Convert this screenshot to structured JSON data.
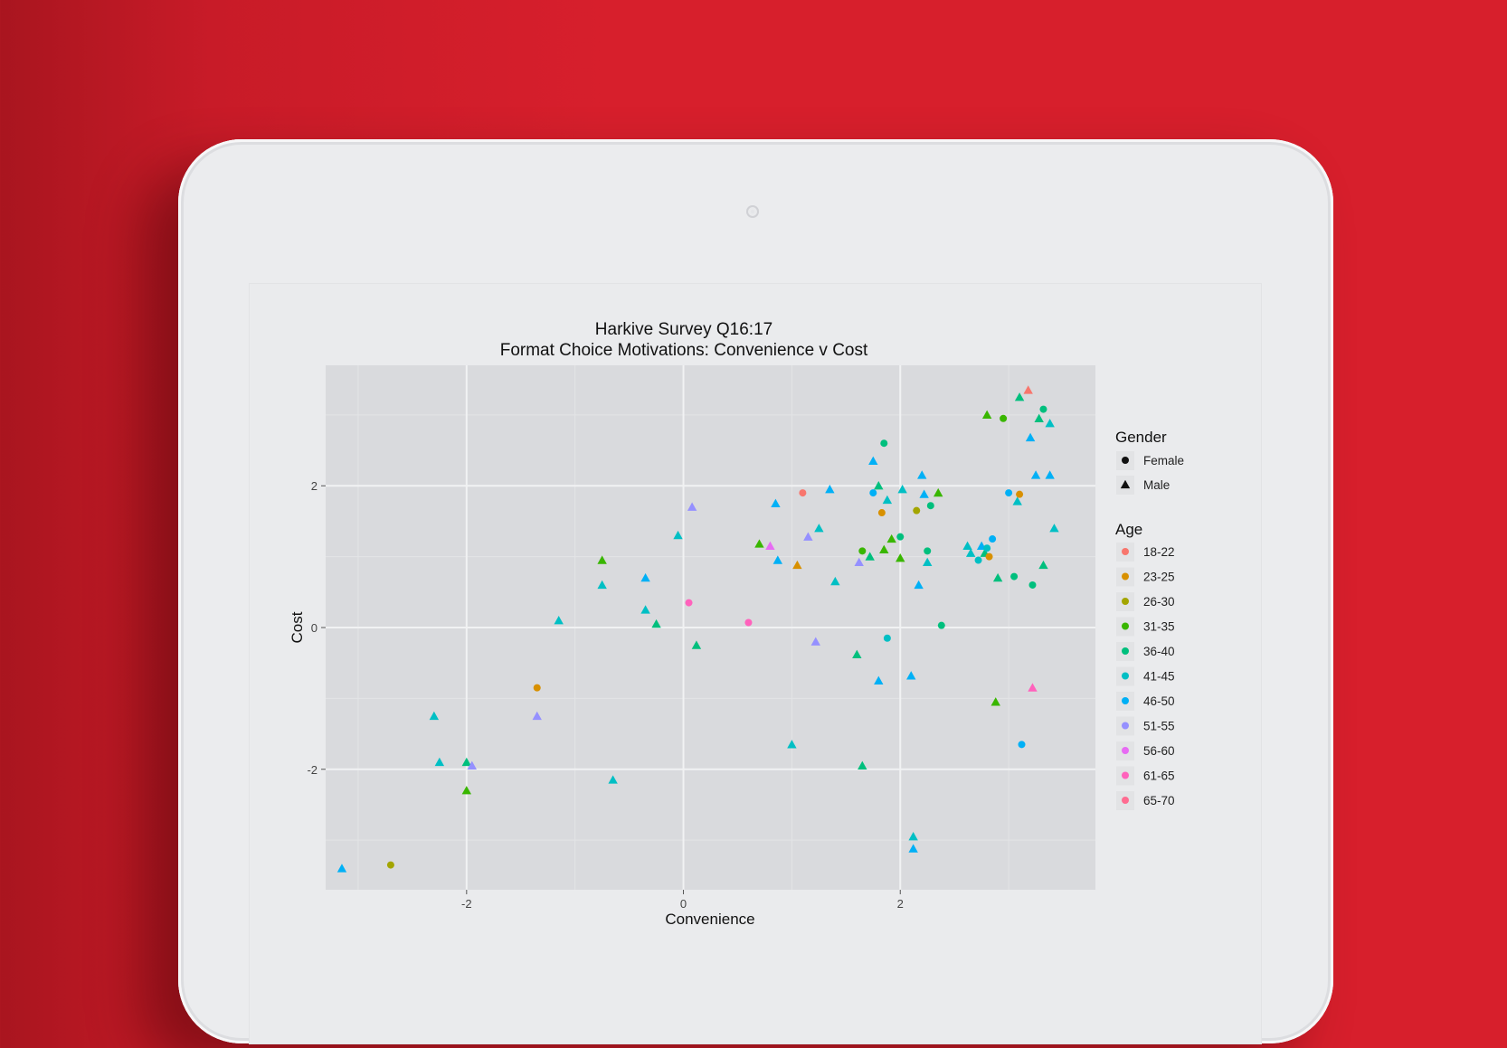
{
  "chart_data": {
    "type": "scatter",
    "title": "Harkive Survey Q16:17",
    "subtitle": "Format Choice Motivations: Convenience v Cost",
    "xlabel": "Convenience",
    "ylabel": "Cost",
    "xlim": [
      -3.3,
      3.8
    ],
    "ylim": [
      -3.7,
      3.7
    ],
    "xticks": [
      -2,
      0,
      2
    ],
    "yticks": [
      -2,
      0,
      2
    ],
    "grid": true,
    "legend_position": "right",
    "legends": {
      "shape": {
        "title": "Gender",
        "entries": [
          {
            "label": "Female",
            "shape": "circle"
          },
          {
            "label": "Male",
            "shape": "triangle"
          }
        ]
      },
      "color": {
        "title": "Age",
        "entries": [
          {
            "label": "18-22",
            "color": "#F8766D"
          },
          {
            "label": "23-25",
            "color": "#D89000"
          },
          {
            "label": "26-30",
            "color": "#A3A500"
          },
          {
            "label": "31-35",
            "color": "#39B600"
          },
          {
            "label": "36-40",
            "color": "#00BF7D"
          },
          {
            "label": "41-45",
            "color": "#00BFC4"
          },
          {
            "label": "46-50",
            "color": "#00B0F6"
          },
          {
            "label": "51-55",
            "color": "#9590FF"
          },
          {
            "label": "56-60",
            "color": "#E76BF3"
          },
          {
            "label": "61-65",
            "color": "#FF62BC"
          },
          {
            "label": "65-70",
            "color": "#FF6C91"
          }
        ]
      }
    },
    "points": [
      {
        "x": -3.15,
        "y": -3.4,
        "gender": "Male",
        "age": "46-50"
      },
      {
        "x": -2.7,
        "y": -3.35,
        "gender": "Female",
        "age": "26-30"
      },
      {
        "x": -2.3,
        "y": -1.25,
        "gender": "Male",
        "age": "41-45"
      },
      {
        "x": -2.25,
        "y": -1.9,
        "gender": "Male",
        "age": "41-45"
      },
      {
        "x": -2.0,
        "y": -1.9,
        "gender": "Male",
        "age": "36-40"
      },
      {
        "x": -1.95,
        "y": -1.95,
        "gender": "Male",
        "age": "51-55"
      },
      {
        "x": -2.0,
        "y": -2.3,
        "gender": "Male",
        "age": "31-35"
      },
      {
        "x": -1.35,
        "y": -0.85,
        "gender": "Female",
        "age": "23-25"
      },
      {
        "x": -1.35,
        "y": -1.25,
        "gender": "Male",
        "age": "51-55"
      },
      {
        "x": -1.15,
        "y": 0.1,
        "gender": "Male",
        "age": "41-45"
      },
      {
        "x": -0.75,
        "y": 0.95,
        "gender": "Male",
        "age": "31-35"
      },
      {
        "x": -0.75,
        "y": 0.6,
        "gender": "Male",
        "age": "41-45"
      },
      {
        "x": -0.65,
        "y": -2.15,
        "gender": "Male",
        "age": "41-45"
      },
      {
        "x": -0.35,
        "y": 0.7,
        "gender": "Male",
        "age": "46-50"
      },
      {
        "x": -0.35,
        "y": 0.25,
        "gender": "Male",
        "age": "41-45"
      },
      {
        "x": -0.25,
        "y": 0.05,
        "gender": "Male",
        "age": "36-40"
      },
      {
        "x": -0.05,
        "y": 1.3,
        "gender": "Male",
        "age": "41-45"
      },
      {
        "x": 0.05,
        "y": 0.35,
        "gender": "Female",
        "age": "61-65"
      },
      {
        "x": 0.08,
        "y": 1.7,
        "gender": "Male",
        "age": "51-55"
      },
      {
        "x": 0.12,
        "y": -0.25,
        "gender": "Male",
        "age": "36-40"
      },
      {
        "x": 0.6,
        "y": 0.07,
        "gender": "Female",
        "age": "61-65"
      },
      {
        "x": 0.7,
        "y": 1.18,
        "gender": "Male",
        "age": "31-35"
      },
      {
        "x": 0.8,
        "y": 1.15,
        "gender": "Male",
        "age": "56-60"
      },
      {
        "x": 0.85,
        "y": 1.75,
        "gender": "Male",
        "age": "46-50"
      },
      {
        "x": 0.87,
        "y": 0.95,
        "gender": "Male",
        "age": "46-50"
      },
      {
        "x": 1.0,
        "y": -1.65,
        "gender": "Male",
        "age": "41-45"
      },
      {
        "x": 1.05,
        "y": 0.88,
        "gender": "Male",
        "age": "23-25"
      },
      {
        "x": 1.1,
        "y": 1.9,
        "gender": "Female",
        "age": "18-22"
      },
      {
        "x": 1.15,
        "y": 1.28,
        "gender": "Male",
        "age": "51-55"
      },
      {
        "x": 1.22,
        "y": -0.2,
        "gender": "Male",
        "age": "51-55"
      },
      {
        "x": 1.25,
        "y": 1.4,
        "gender": "Male",
        "age": "41-45"
      },
      {
        "x": 1.35,
        "y": 1.95,
        "gender": "Male",
        "age": "46-50"
      },
      {
        "x": 1.4,
        "y": 0.65,
        "gender": "Male",
        "age": "41-45"
      },
      {
        "x": 1.6,
        "y": -0.38,
        "gender": "Male",
        "age": "36-40"
      },
      {
        "x": 1.62,
        "y": 0.92,
        "gender": "Male",
        "age": "51-55"
      },
      {
        "x": 1.65,
        "y": -1.95,
        "gender": "Male",
        "age": "36-40"
      },
      {
        "x": 1.65,
        "y": 1.08,
        "gender": "Female",
        "age": "31-35"
      },
      {
        "x": 1.72,
        "y": 1.0,
        "gender": "Male",
        "age": "36-40"
      },
      {
        "x": 1.75,
        "y": 1.9,
        "gender": "Female",
        "age": "46-50"
      },
      {
        "x": 1.75,
        "y": 2.35,
        "gender": "Male",
        "age": "46-50"
      },
      {
        "x": 1.8,
        "y": 2.0,
        "gender": "Male",
        "age": "36-40"
      },
      {
        "x": 1.8,
        "y": -0.75,
        "gender": "Male",
        "age": "46-50"
      },
      {
        "x": 1.83,
        "y": 1.62,
        "gender": "Female",
        "age": "23-25"
      },
      {
        "x": 1.85,
        "y": 2.6,
        "gender": "Female",
        "age": "36-40"
      },
      {
        "x": 1.85,
        "y": 1.1,
        "gender": "Male",
        "age": "31-35"
      },
      {
        "x": 1.88,
        "y": 1.8,
        "gender": "Male",
        "age": "41-45"
      },
      {
        "x": 1.88,
        "y": -0.15,
        "gender": "Female",
        "age": "41-45"
      },
      {
        "x": 1.92,
        "y": 1.25,
        "gender": "Male",
        "age": "31-35"
      },
      {
        "x": 2.0,
        "y": 1.28,
        "gender": "Female",
        "age": "36-40"
      },
      {
        "x": 2.0,
        "y": 0.98,
        "gender": "Male",
        "age": "31-35"
      },
      {
        "x": 2.02,
        "y": 1.95,
        "gender": "Male",
        "age": "41-45"
      },
      {
        "x": 2.1,
        "y": -0.68,
        "gender": "Male",
        "age": "46-50"
      },
      {
        "x": 2.12,
        "y": -2.95,
        "gender": "Male",
        "age": "41-45"
      },
      {
        "x": 2.12,
        "y": -3.12,
        "gender": "Male",
        "age": "46-50"
      },
      {
        "x": 2.15,
        "y": 1.65,
        "gender": "Female",
        "age": "26-30"
      },
      {
        "x": 2.17,
        "y": 0.6,
        "gender": "Male",
        "age": "46-50"
      },
      {
        "x": 2.2,
        "y": 2.15,
        "gender": "Male",
        "age": "46-50"
      },
      {
        "x": 2.22,
        "y": 1.88,
        "gender": "Male",
        "age": "46-50"
      },
      {
        "x": 2.25,
        "y": 1.08,
        "gender": "Female",
        "age": "36-40"
      },
      {
        "x": 2.25,
        "y": 0.92,
        "gender": "Male",
        "age": "41-45"
      },
      {
        "x": 2.28,
        "y": 1.72,
        "gender": "Female",
        "age": "36-40"
      },
      {
        "x": 2.35,
        "y": 1.9,
        "gender": "Male",
        "age": "31-35"
      },
      {
        "x": 2.38,
        "y": 0.03,
        "gender": "Female",
        "age": "36-40"
      },
      {
        "x": 2.62,
        "y": 1.15,
        "gender": "Male",
        "age": "41-45"
      },
      {
        "x": 2.65,
        "y": 1.05,
        "gender": "Male",
        "age": "41-45"
      },
      {
        "x": 2.72,
        "y": 0.95,
        "gender": "Female",
        "age": "41-45"
      },
      {
        "x": 2.75,
        "y": 1.15,
        "gender": "Male",
        "age": "46-50"
      },
      {
        "x": 2.78,
        "y": 1.05,
        "gender": "Male",
        "age": "36-40"
      },
      {
        "x": 2.8,
        "y": 1.12,
        "gender": "Female",
        "age": "41-45"
      },
      {
        "x": 2.8,
        "y": 3.0,
        "gender": "Male",
        "age": "31-35"
      },
      {
        "x": 2.82,
        "y": 1.0,
        "gender": "Female",
        "age": "23-25"
      },
      {
        "x": 2.85,
        "y": 1.25,
        "gender": "Female",
        "age": "46-50"
      },
      {
        "x": 2.88,
        "y": -1.05,
        "gender": "Male",
        "age": "31-35"
      },
      {
        "x": 2.9,
        "y": 0.7,
        "gender": "Male",
        "age": "36-40"
      },
      {
        "x": 2.95,
        "y": 2.95,
        "gender": "Female",
        "age": "31-35"
      },
      {
        "x": 3.0,
        "y": 1.9,
        "gender": "Female",
        "age": "46-50"
      },
      {
        "x": 3.05,
        "y": 0.72,
        "gender": "Female",
        "age": "36-40"
      },
      {
        "x": 3.08,
        "y": 1.78,
        "gender": "Male",
        "age": "41-45"
      },
      {
        "x": 3.1,
        "y": 3.25,
        "gender": "Male",
        "age": "36-40"
      },
      {
        "x": 3.1,
        "y": 1.88,
        "gender": "Female",
        "age": "23-25"
      },
      {
        "x": 3.12,
        "y": -1.65,
        "gender": "Female",
        "age": "46-50"
      },
      {
        "x": 3.18,
        "y": 3.35,
        "gender": "Male",
        "age": "18-22"
      },
      {
        "x": 3.2,
        "y": 2.68,
        "gender": "Male",
        "age": "46-50"
      },
      {
        "x": 3.22,
        "y": -0.85,
        "gender": "Male",
        "age": "61-65"
      },
      {
        "x": 3.22,
        "y": 0.6,
        "gender": "Female",
        "age": "36-40"
      },
      {
        "x": 3.25,
        "y": 2.15,
        "gender": "Male",
        "age": "46-50"
      },
      {
        "x": 3.28,
        "y": 2.95,
        "gender": "Male",
        "age": "36-40"
      },
      {
        "x": 3.32,
        "y": 3.08,
        "gender": "Female",
        "age": "36-40"
      },
      {
        "x": 3.32,
        "y": 0.88,
        "gender": "Male",
        "age": "36-40"
      },
      {
        "x": 3.38,
        "y": 2.88,
        "gender": "Male",
        "age": "41-45"
      },
      {
        "x": 3.38,
        "y": 2.15,
        "gender": "Male",
        "age": "46-50"
      },
      {
        "x": 3.42,
        "y": 1.4,
        "gender": "Male",
        "age": "41-45"
      }
    ]
  }
}
